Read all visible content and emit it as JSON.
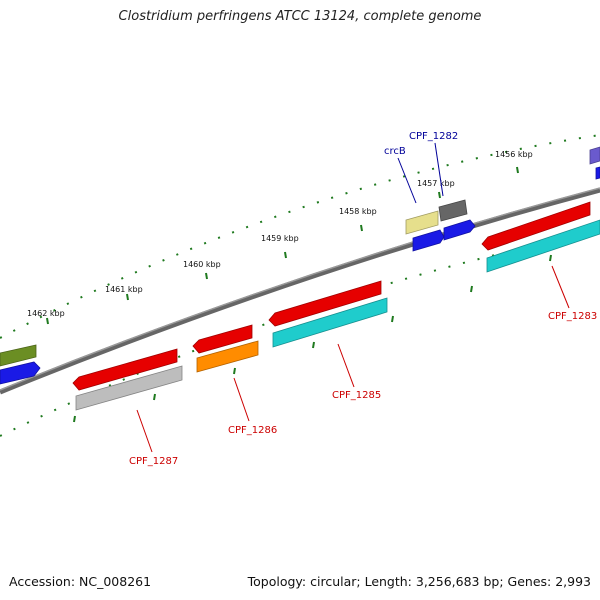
{
  "title": "Clostridium perfringens ATCC 13124, complete genome",
  "footer": {
    "accession": "Accession: NC_008261",
    "topology": "Topology: circular; Length: 3,256,683 bp; Genes: 2,993"
  },
  "colors": {
    "backbone": "#7a7a7a",
    "ticks": "#1f7a1f",
    "label_red": "#cc0000",
    "label_blue": "#000099"
  },
  "scale_labels": [
    "1456 kbp",
    "1457 kbp",
    "1458 kbp",
    "1459 kbp",
    "1460 kbp",
    "1461 kbp",
    "1462 kbp"
  ],
  "features": [
    {
      "name": "olive-feature",
      "color": "#6b8e23"
    },
    {
      "name": "blue-feature-left",
      "color": "#1a1ae6"
    },
    {
      "name": "red-feature-1287",
      "color": "#e60000"
    },
    {
      "name": "gray-feature-1287",
      "color": "#bdbdbd"
    },
    {
      "name": "red-feature-1286",
      "color": "#e60000"
    },
    {
      "name": "orange-feature-1286",
      "color": "#ff8c00"
    },
    {
      "name": "red-feature-1285",
      "color": "#e60000"
    },
    {
      "name": "cyan-feature-1285",
      "color": "#1fcccc"
    },
    {
      "name": "khaki-feature-crcB",
      "color": "#e6df8c"
    },
    {
      "name": "blue-feature-crcB",
      "color": "#1a1ae6"
    },
    {
      "name": "dark-gray-feature-1282",
      "color": "#666666"
    },
    {
      "name": "blue-feature-1282",
      "color": "#1a1ae6"
    },
    {
      "name": "red-feature-1283",
      "color": "#e60000"
    },
    {
      "name": "cyan-feature-1283",
      "color": "#1fcccc"
    },
    {
      "name": "purple-feature-right",
      "color": "#6a5acd"
    },
    {
      "name": "blue-feature-right",
      "color": "#1a1ae6"
    }
  ],
  "gene_labels": [
    "CPF_1287",
    "CPF_1286",
    "CPF_1285",
    "CPF_1283",
    "crcB",
    "CPF_1282"
  ]
}
